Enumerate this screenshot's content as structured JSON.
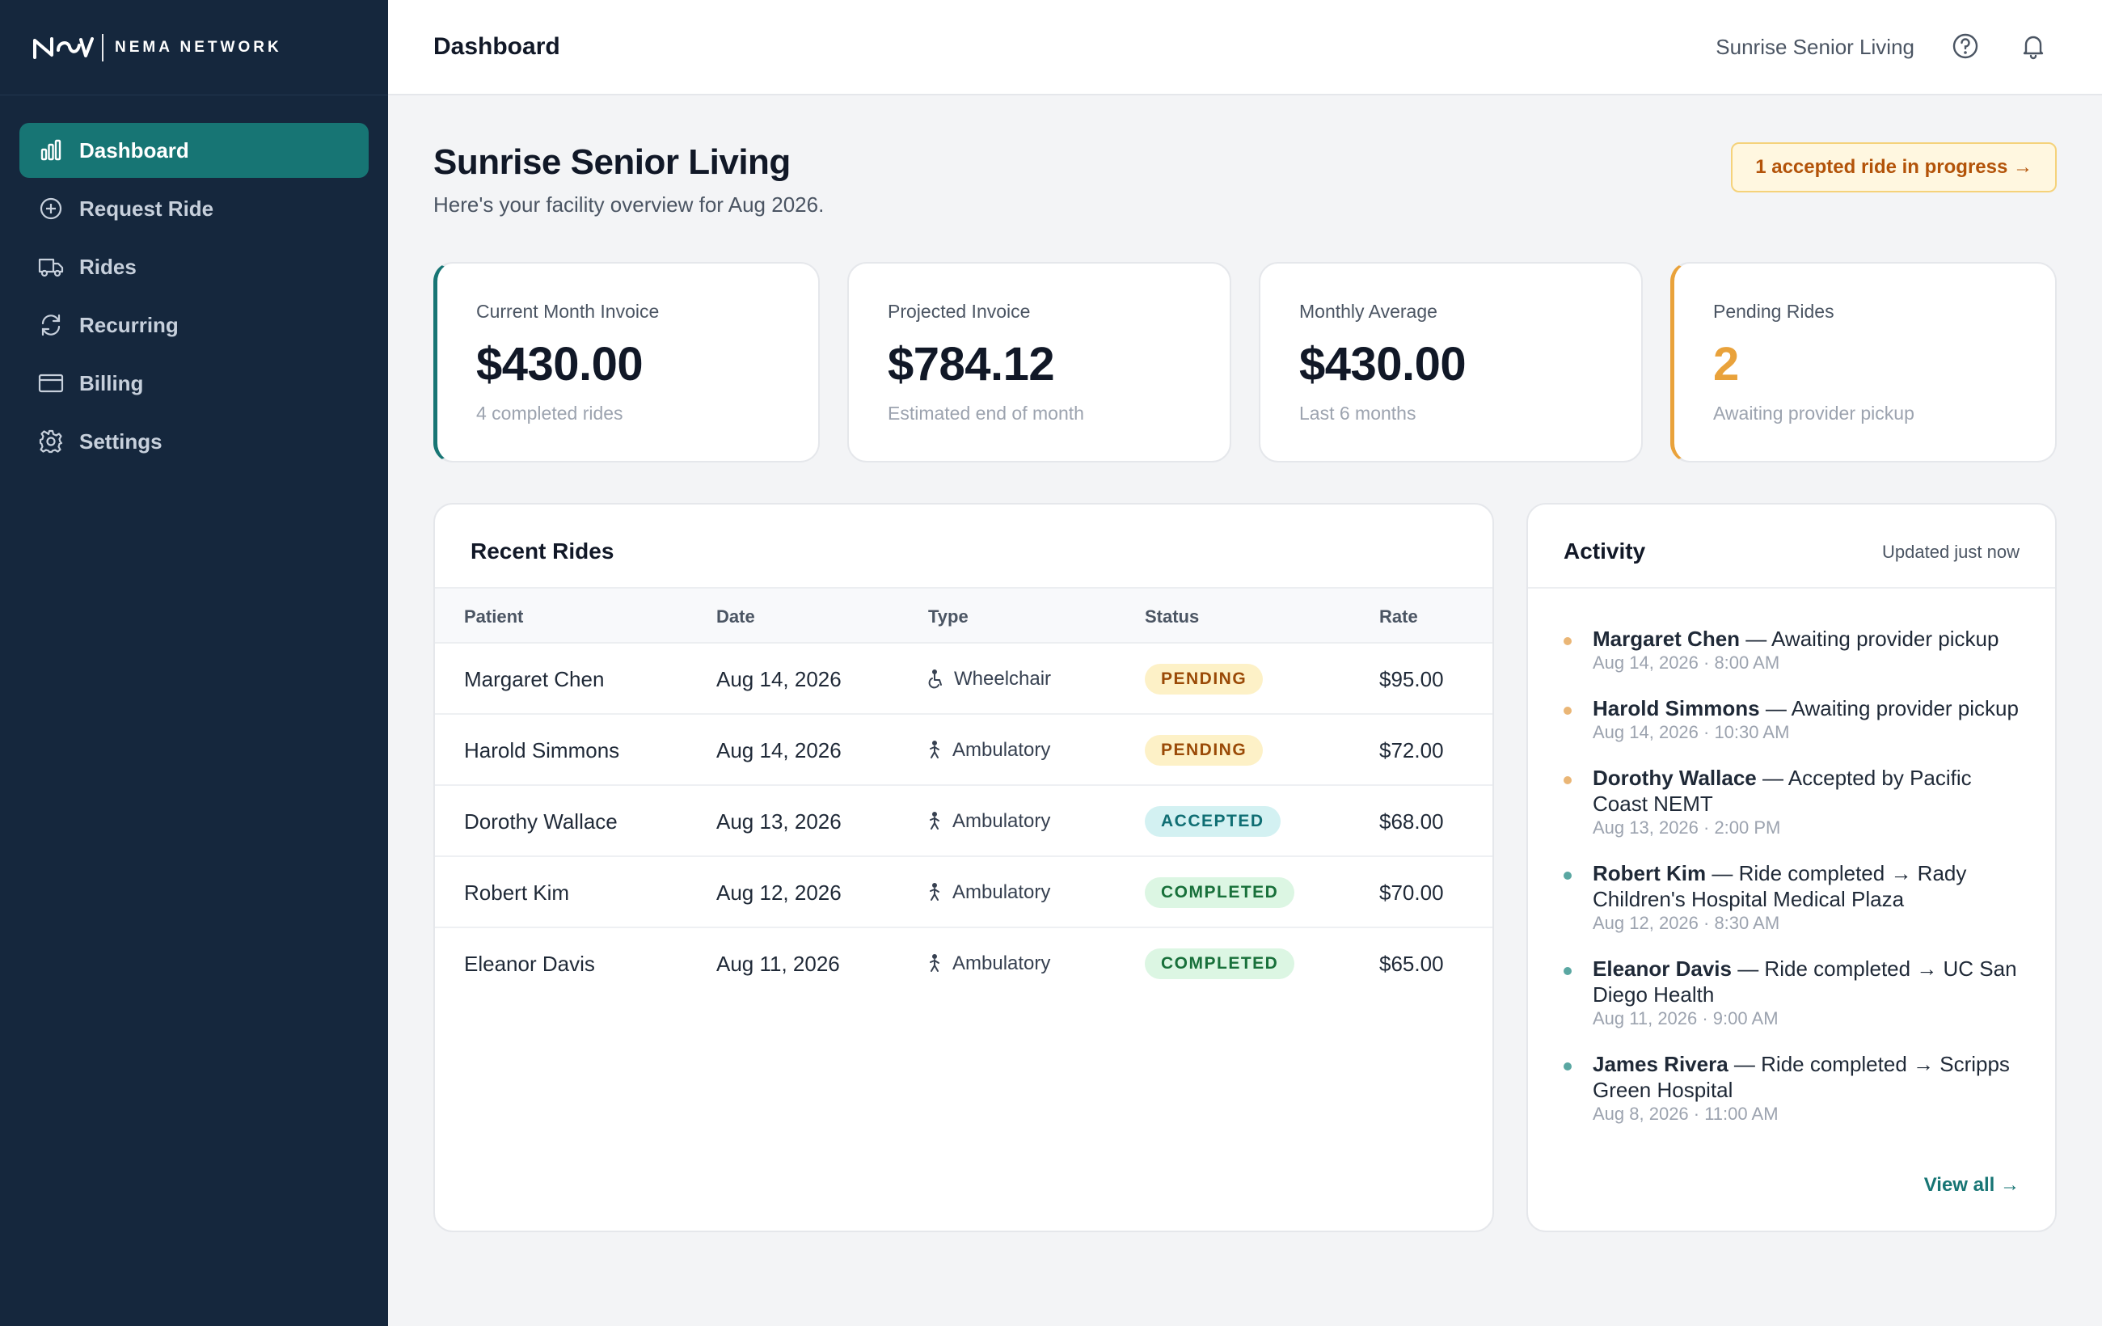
{
  "brand": {
    "name": "NEMA NETWORK"
  },
  "sidebar": {
    "items": [
      {
        "label": "Dashboard",
        "icon": "bar-chart-icon",
        "active": true
      },
      {
        "label": "Request Ride",
        "icon": "plus-circle-icon",
        "active": false
      },
      {
        "label": "Rides",
        "icon": "truck-icon",
        "active": false
      },
      {
        "label": "Recurring",
        "icon": "refresh-icon",
        "active": false
      },
      {
        "label": "Billing",
        "icon": "credit-card-icon",
        "active": false
      },
      {
        "label": "Settings",
        "icon": "gear-icon",
        "active": false
      }
    ]
  },
  "topbar": {
    "title": "Dashboard",
    "facility": "Sunrise Senior Living",
    "icons": [
      "help-circle-icon",
      "bell-icon"
    ]
  },
  "header": {
    "title": "Sunrise Senior Living",
    "subtitle": "Here's your facility overview for Aug 2026.",
    "progress_pill": "1 accepted ride in progress →"
  },
  "stats": [
    {
      "label": "Current Month Invoice",
      "value": "$430.00",
      "note": "4 completed rides"
    },
    {
      "label": "Projected Invoice",
      "value": "$784.12",
      "note": "Estimated end of month"
    },
    {
      "label": "Monthly Average",
      "value": "$430.00",
      "note": "Last 6 months"
    },
    {
      "label": "Pending Rides",
      "value": "2",
      "note": "Awaiting provider pickup"
    }
  ],
  "recent_rides": {
    "title": "Recent Rides",
    "columns": [
      "Patient",
      "Date",
      "Type",
      "Status",
      "Rate"
    ],
    "rows": [
      {
        "patient": "Margaret Chen",
        "date": "Aug 14, 2026",
        "type": "Wheelchair",
        "type_icon": "wheelchair-icon",
        "status": "PENDING",
        "rate": "$95.00"
      },
      {
        "patient": "Harold Simmons",
        "date": "Aug 14, 2026",
        "type": "Ambulatory",
        "type_icon": "walking-icon",
        "status": "PENDING",
        "rate": "$72.00"
      },
      {
        "patient": "Dorothy Wallace",
        "date": "Aug 13, 2026",
        "type": "Ambulatory",
        "type_icon": "walking-icon",
        "status": "ACCEPTED",
        "rate": "$68.00"
      },
      {
        "patient": "Robert Kim",
        "date": "Aug 12, 2026",
        "type": "Ambulatory",
        "type_icon": "walking-icon",
        "status": "COMPLETED",
        "rate": "$70.00"
      },
      {
        "patient": "Eleanor Davis",
        "date": "Aug 11, 2026",
        "type": "Ambulatory",
        "type_icon": "walking-icon",
        "status": "COMPLETED",
        "rate": "$65.00"
      }
    ]
  },
  "activity": {
    "title": "Activity",
    "updated": "Updated just now",
    "items": [
      {
        "who": "Margaret Chen",
        "text": " — Awaiting provider pickup",
        "when": "Aug 14, 2026 · 8:00 AM",
        "dot_color": "#eab676"
      },
      {
        "who": "Harold Simmons",
        "text": " — Awaiting provider pickup",
        "when": "Aug 14, 2026 · 10:30 AM",
        "dot_color": "#eab676"
      },
      {
        "who": "Dorothy Wallace",
        "text": " — Accepted by Pacific Coast NEMT",
        "when": "Aug 13, 2026 · 2:00 PM",
        "dot_color": "#eab676"
      },
      {
        "who": "Robert Kim",
        "text": " — Ride completed → Rady Children's Hospital Medical Plaza",
        "when": "Aug 12, 2026 · 8:30 AM",
        "dot_color": "#5aa7a2"
      },
      {
        "who": "Eleanor Davis",
        "text": " — Ride completed → UC San Diego Health",
        "when": "Aug 11, 2026 · 9:00 AM",
        "dot_color": "#5aa7a2"
      },
      {
        "who": "James Rivera",
        "text": " — Ride completed → Scripps Green Hospital",
        "when": "Aug 8, 2026 · 11:00 AM",
        "dot_color": "#5aa7a2"
      }
    ],
    "view_all": "View all →"
  },
  "colors": {
    "sidebar_bg": "#15273d",
    "accent_teal": "#177574",
    "accent_orange": "#e9a23b",
    "pending_bg": "#fdf1c7",
    "pending_fg": "#9a4a07",
    "accepted_bg": "#d3f1f2",
    "accepted_fg": "#0f6e73",
    "completed_bg": "#dcf6e3",
    "completed_fg": "#18703a"
  }
}
